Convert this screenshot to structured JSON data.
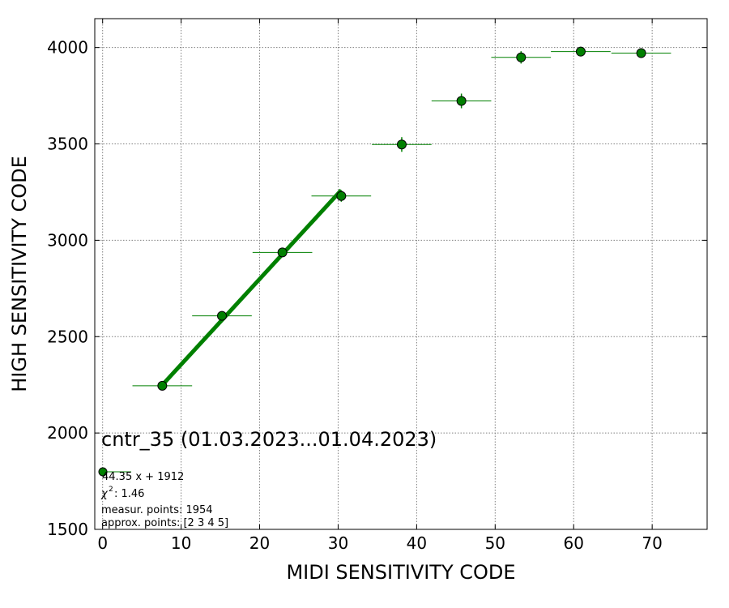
{
  "chart_data": {
    "type": "scatter",
    "title": "cntr_35 (01.03.2023...01.04.2023)",
    "xlabel": "MIDI SENSITIVITY CODE",
    "ylabel": "HIGH SENSITIVITY CODE",
    "xlim": [
      -1,
      77
    ],
    "ylim": [
      1500,
      4150
    ],
    "xticks": [
      0,
      10,
      20,
      30,
      40,
      50,
      60,
      70
    ],
    "yticks": [
      1500,
      2000,
      2500,
      3000,
      3500,
      4000
    ],
    "grid": true,
    "points": [
      {
        "x": 7.6,
        "y": 2245,
        "xerr": 3.8,
        "yerr": 12
      },
      {
        "x": 15.2,
        "y": 2608,
        "xerr": 3.8,
        "yerr": 15
      },
      {
        "x": 22.9,
        "y": 2937,
        "xerr": 3.8,
        "yerr": 18
      },
      {
        "x": 30.4,
        "y": 3230,
        "xerr": 3.8,
        "yerr": 30
      },
      {
        "x": 38.1,
        "y": 3497,
        "xerr": 3.8,
        "yerr": 38
      },
      {
        "x": 45.7,
        "y": 3723,
        "xerr": 3.8,
        "yerr": 38
      },
      {
        "x": 53.3,
        "y": 3949,
        "xerr": 3.8,
        "yerr": 32
      },
      {
        "x": 60.9,
        "y": 3979,
        "xerr": 3.8,
        "yerr": 25
      },
      {
        "x": 68.6,
        "y": 3971,
        "xerr": 3.8,
        "yerr": 25
      }
    ],
    "fit": {
      "slope": 44.35,
      "intercept": 1912,
      "x_range": [
        7.6,
        30.4
      ]
    },
    "legend": {
      "placement": "lower-left",
      "fit_label": "44.35 x + 1912",
      "chi2_label": ": 1.46",
      "measur_label": "measur. points: 1954",
      "approx_label": "approx. points: [2 3 4 5]"
    },
    "colors": {
      "series": "#008000",
      "fit": "#008000",
      "grid": "#808080",
      "marker_edge": "#000000"
    }
  }
}
